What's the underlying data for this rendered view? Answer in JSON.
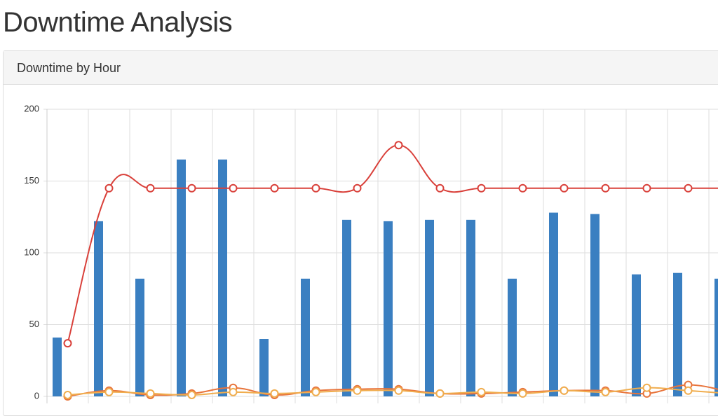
{
  "header": {
    "title": "Downtime Analysis"
  },
  "panel": {
    "title": "Downtime by Hour"
  },
  "chart_data": {
    "type": "bar",
    "categories": [
      null,
      null,
      null,
      null,
      null,
      null,
      null,
      null,
      null,
      null,
      null,
      null,
      null,
      null,
      null,
      null,
      null
    ],
    "ylim": [
      0,
      200
    ],
    "yticks": [
      0,
      50,
      100,
      150,
      200
    ],
    "grid": true,
    "series": [
      {
        "type": "bar",
        "color": "#3a7fc1",
        "values": [
          41,
          122,
          82,
          165,
          165,
          40,
          82,
          123,
          122,
          123,
          123,
          82,
          128,
          127,
          85,
          86,
          82
        ]
      },
      {
        "type": "line",
        "color": "#d9403a",
        "values": [
          37,
          145,
          145,
          145,
          145,
          145,
          145,
          145,
          175,
          145,
          145,
          145,
          145,
          145,
          145,
          145,
          145
        ]
      },
      {
        "type": "line",
        "color": "#e8743b",
        "values": [
          0,
          4,
          1,
          2,
          6,
          1,
          4,
          5,
          5,
          2,
          2,
          3,
          4,
          4,
          2,
          8,
          3
        ]
      },
      {
        "type": "line",
        "color": "#f0ad4e",
        "values": [
          1,
          3,
          2,
          1,
          3,
          2,
          3,
          4,
          4,
          2,
          3,
          2,
          4,
          3,
          6,
          4,
          2
        ]
      }
    ]
  }
}
